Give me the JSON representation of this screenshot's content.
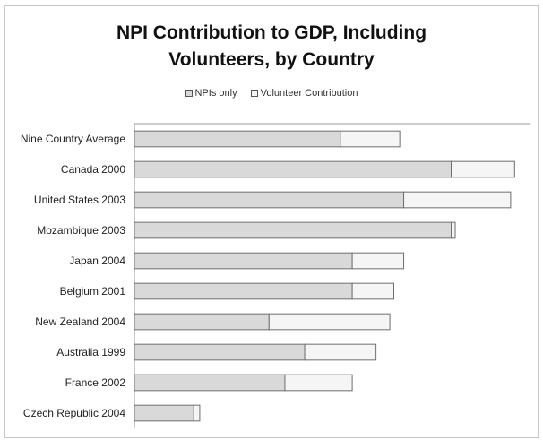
{
  "chart_data": {
    "type": "bar",
    "orientation": "horizontal",
    "stacked": true,
    "title": "NPI Contribution to GDP,  Including Volunteers, by Country",
    "title_lines": [
      "NPI Contribution to GDP,  Including",
      "Volunteers, by Country"
    ],
    "categories": [
      "Nine Country Average",
      "Canada 2000",
      "United States 2003",
      "Mozambique 2003",
      "Japan 2004",
      "Belgium 2001",
      "New Zealand 2004",
      "Australia 1999",
      "France 2002",
      "Czech Republic 2004"
    ],
    "series": [
      {
        "name": "NPIs only",
        "color": "#d9d9d9",
        "values": [
          5.2,
          8.0,
          6.8,
          8.0,
          5.5,
          5.5,
          3.4,
          4.3,
          3.8,
          1.5
        ]
      },
      {
        "name": "Volunteer Contribution",
        "color": "#f5f5f5",
        "values": [
          1.5,
          1.6,
          2.7,
          0.1,
          1.3,
          1.05,
          3.05,
          1.8,
          1.7,
          0.15
        ]
      }
    ],
    "xlim": [
      0,
      10
    ],
    "grid": false,
    "legend_position": "top"
  }
}
